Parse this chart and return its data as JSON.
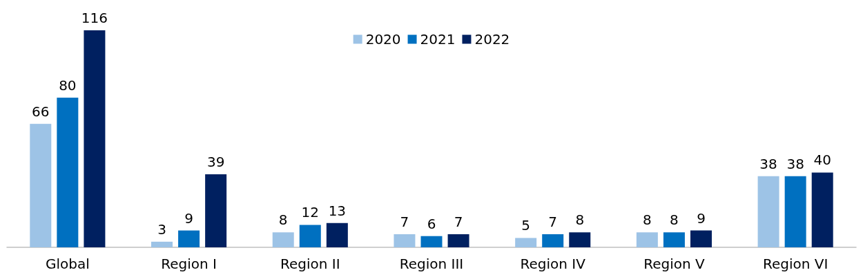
{
  "chart_data": {
    "type": "bar",
    "categories": [
      "Global",
      "Region I",
      "Region II",
      "Region III",
      "Region IV",
      "Region V",
      "Region VI"
    ],
    "series": [
      {
        "name": "2020",
        "color": "#9dc3e6",
        "values": [
          66,
          3,
          8,
          7,
          5,
          8,
          38
        ]
      },
      {
        "name": "2021",
        "color": "#0070c0",
        "values": [
          80,
          9,
          12,
          6,
          7,
          8,
          38
        ]
      },
      {
        "name": "2022",
        "color": "#002060",
        "values": [
          116,
          39,
          13,
          7,
          8,
          9,
          40
        ]
      }
    ],
    "data_labels": true,
    "legend": "top"
  }
}
